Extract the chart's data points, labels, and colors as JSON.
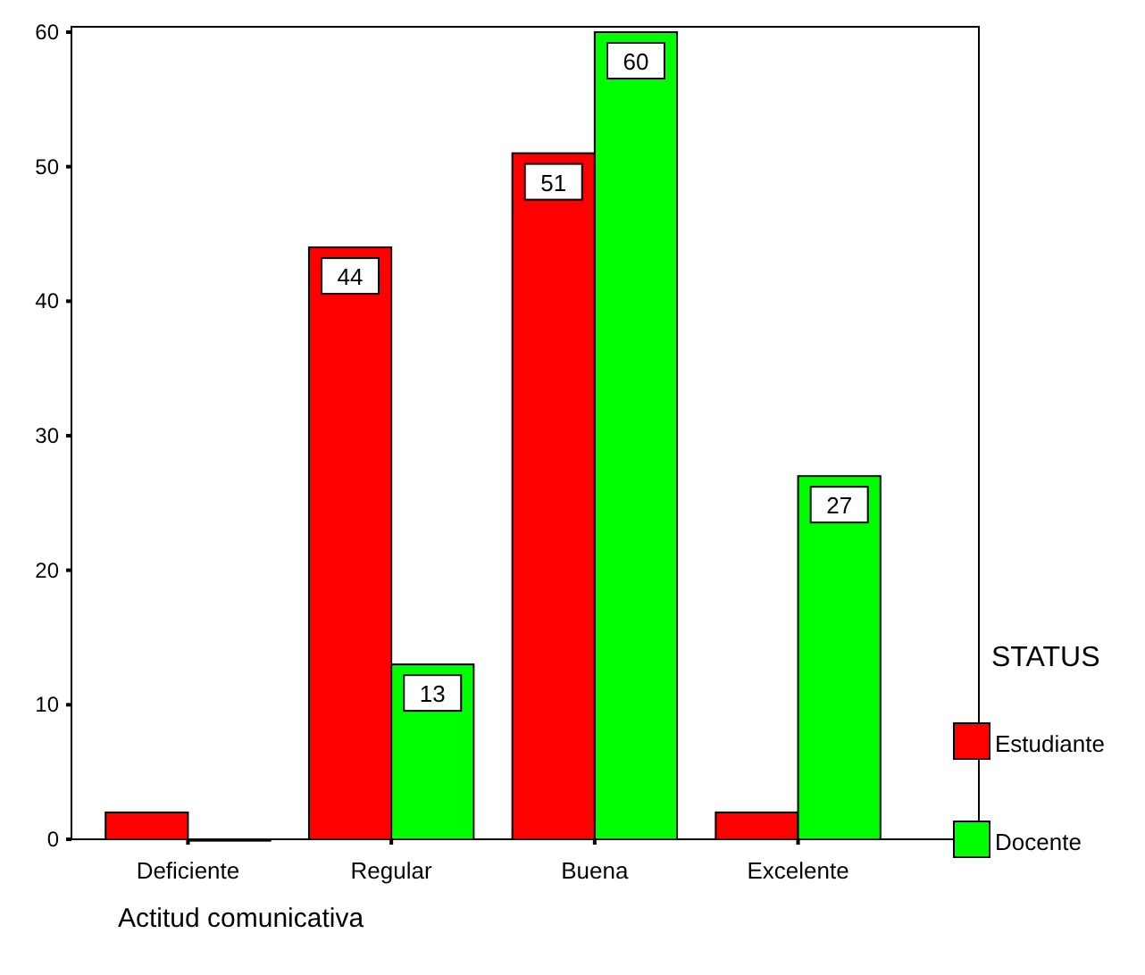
{
  "chart_data": {
    "type": "bar",
    "xlabel": "Actitud comunicativa",
    "legend_title": "STATUS",
    "legend": "right",
    "categories": [
      "Deficiente",
      "Regular",
      "Buena",
      "Excelente"
    ],
    "series": [
      {
        "name": "Estudiante",
        "color": "#ff0000",
        "values": [
          2,
          44,
          51,
          2
        ],
        "value_labels": [
          null,
          "44",
          "51",
          null
        ]
      },
      {
        "name": "Docente",
        "color": "#00ff00",
        "values": [
          0,
          13,
          60,
          27
        ],
        "value_labels": [
          null,
          "13",
          "60",
          "27"
        ]
      }
    ],
    "ylim": [
      0,
      60
    ],
    "yticks": [
      0,
      10,
      20,
      30,
      40,
      50,
      60
    ],
    "grid": false
  }
}
